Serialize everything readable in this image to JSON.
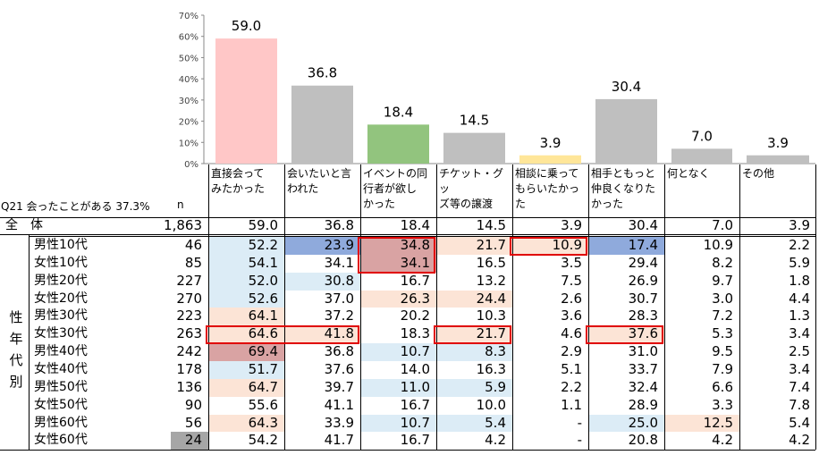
{
  "chart_data": {
    "type": "bar",
    "ylim": [
      0,
      70
    ],
    "yticks": [
      "0%",
      "10%",
      "20%",
      "30%",
      "40%",
      "50%",
      "60%",
      "70%"
    ],
    "categories": [
      "直接会って\nみたかった",
      "会いたいと言\nわれた",
      "イベントの同\n行者が欲し\nかった",
      "チケット・グッ\nズ等の譲渡",
      "相談に乗って\nもらいたかった",
      "相手ともっと\n仲良くなりた\nかった",
      "何となく",
      "その他"
    ],
    "values": [
      59.0,
      36.8,
      18.4,
      14.5,
      3.9,
      30.4,
      7.0,
      3.9
    ],
    "value_labels": [
      "59.0",
      "36.8",
      "18.4",
      "14.5",
      "3.9",
      "30.4",
      "7.0",
      "3.9"
    ],
    "bar_colors": [
      "#ffc7c7",
      "#bfbfbf",
      "#92c47e",
      "#bfbfbf",
      "#ffe699",
      "#bfbfbf",
      "#bfbfbf",
      "#bfbfbf"
    ]
  },
  "question_label": "Q21 会ったことがある 37.3%",
  "n_label": "n",
  "side_label": [
    "性",
    "年",
    "代",
    "別"
  ],
  "total_row": {
    "label": "全　体",
    "n": "1,863",
    "values": [
      "59.0",
      "36.8",
      "18.4",
      "14.5",
      "3.9",
      "30.4",
      "7.0",
      "3.9"
    ]
  },
  "rows": [
    {
      "label": "男性10代",
      "n": "46",
      "values": [
        "52.2",
        "23.9",
        "34.8",
        "21.7",
        "10.9",
        "17.4",
        "10.9",
        "2.2"
      ],
      "fills": [
        "lb",
        "db",
        "dr",
        "lr",
        "lr",
        "db",
        "",
        ""
      ]
    },
    {
      "label": "女性10代",
      "n": "85",
      "values": [
        "54.1",
        "34.1",
        "34.1",
        "16.5",
        "3.5",
        "29.4",
        "8.2",
        "5.9"
      ],
      "fills": [
        "lb",
        "",
        "dr",
        "",
        "",
        "",
        "",
        ""
      ]
    },
    {
      "label": "男性20代",
      "n": "227",
      "values": [
        "52.0",
        "30.8",
        "16.7",
        "13.2",
        "7.5",
        "26.9",
        "9.7",
        "1.8"
      ],
      "fills": [
        "lb",
        "lb",
        "",
        "",
        "",
        "",
        "",
        ""
      ]
    },
    {
      "label": "女性20代",
      "n": "270",
      "values": [
        "52.6",
        "37.0",
        "26.3",
        "24.4",
        "2.6",
        "30.7",
        "3.0",
        "4.4"
      ],
      "fills": [
        "lb",
        "",
        "lr",
        "lr",
        "",
        "",
        "",
        ""
      ]
    },
    {
      "label": "男性30代",
      "n": "223",
      "values": [
        "64.1",
        "37.2",
        "20.2",
        "10.3",
        "3.6",
        "28.3",
        "7.2",
        "1.3"
      ],
      "fills": [
        "lr",
        "",
        "",
        "",
        "",
        "",
        "",
        ""
      ]
    },
    {
      "label": "女性30代",
      "n": "263",
      "values": [
        "64.6",
        "41.8",
        "18.3",
        "21.7",
        "4.6",
        "37.6",
        "5.3",
        "3.4"
      ],
      "fills": [
        "lr",
        "lr",
        "",
        "lr",
        "",
        "lr",
        "",
        ""
      ]
    },
    {
      "label": "男性40代",
      "n": "242",
      "values": [
        "69.4",
        "36.8",
        "10.7",
        "8.3",
        "2.9",
        "31.0",
        "9.5",
        "2.5"
      ],
      "fills": [
        "dr",
        "",
        "lb",
        "lb",
        "",
        "",
        "",
        ""
      ]
    },
    {
      "label": "女性40代",
      "n": "178",
      "values": [
        "51.7",
        "37.6",
        "14.0",
        "16.3",
        "5.1",
        "33.7",
        "7.9",
        "3.4"
      ],
      "fills": [
        "lb",
        "",
        "",
        "",
        "",
        "",
        "",
        ""
      ]
    },
    {
      "label": "男性50代",
      "n": "136",
      "values": [
        "64.7",
        "39.7",
        "11.0",
        "5.9",
        "2.2",
        "32.4",
        "6.6",
        "7.4"
      ],
      "fills": [
        "lr",
        "",
        "lb",
        "lb",
        "",
        "",
        "",
        ""
      ]
    },
    {
      "label": "女性50代",
      "n": "90",
      "values": [
        "55.6",
        "41.1",
        "16.7",
        "10.0",
        "1.1",
        "28.9",
        "3.3",
        "7.8"
      ],
      "fills": [
        "",
        "",
        "",
        "",
        "",
        "",
        "",
        ""
      ]
    },
    {
      "label": "男性60代",
      "n": "56",
      "values": [
        "64.3",
        "33.9",
        "10.7",
        "5.4",
        "-",
        "25.0",
        "12.5",
        "5.4"
      ],
      "fills": [
        "lr",
        "",
        "lb",
        "lb",
        "",
        "lb",
        "lr",
        ""
      ]
    },
    {
      "label": "女性60代",
      "n": "24",
      "values": [
        "54.2",
        "41.7",
        "16.7",
        "4.2",
        "-",
        "20.8",
        "4.2",
        "4.2"
      ],
      "fills": [
        "",
        "",
        "",
        "",
        "",
        "",
        "",
        ""
      ],
      "n_fill": "gray"
    }
  ],
  "fill_colors": {
    "lb": "#dcecf6",
    "db": "#8faadc",
    "lr": "#fce4d6",
    "dr": "#d9a3a3",
    "gray": "#a6a6a6"
  },
  "highlight_boxes": [
    {
      "rows": [
        0,
        1
      ],
      "cols": [
        2,
        2
      ]
    },
    {
      "rows": [
        0,
        0
      ],
      "cols": [
        4,
        4
      ]
    },
    {
      "rows": [
        5,
        5
      ],
      "cols": [
        0,
        1
      ]
    },
    {
      "rows": [
        5,
        5
      ],
      "cols": [
        3,
        3
      ]
    },
    {
      "rows": [
        5,
        5
      ],
      "cols": [
        5,
        5
      ]
    }
  ]
}
